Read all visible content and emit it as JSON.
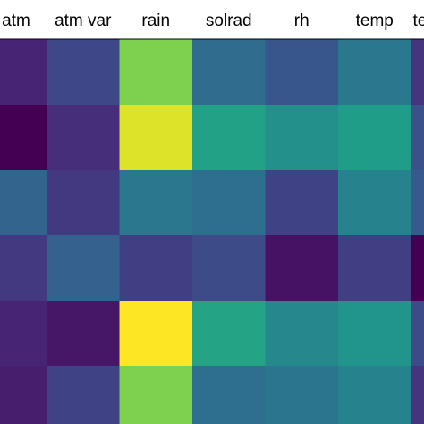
{
  "chart_data": {
    "type": "heatmap",
    "columns": [
      "atm",
      "atm var",
      "rain",
      "solrad",
      "rh",
      "temp",
      "te"
    ],
    "colormap": "viridis",
    "clim": [
      0,
      1
    ],
    "values": [
      [
        0.1,
        0.22,
        0.8,
        0.35,
        0.27,
        0.4,
        0.15
      ],
      [
        0.0,
        0.13,
        0.95,
        0.57,
        0.5,
        0.55,
        0.25
      ],
      [
        0.32,
        0.17,
        0.4,
        0.36,
        0.2,
        0.45,
        0.28
      ],
      [
        0.17,
        0.31,
        0.19,
        0.23,
        0.05,
        0.19,
        0.0
      ],
      [
        0.1,
        0.06,
        1.0,
        0.58,
        0.47,
        0.52,
        0.23
      ],
      [
        0.08,
        0.2,
        0.8,
        0.36,
        0.39,
        0.45,
        0.15
      ]
    ]
  }
}
